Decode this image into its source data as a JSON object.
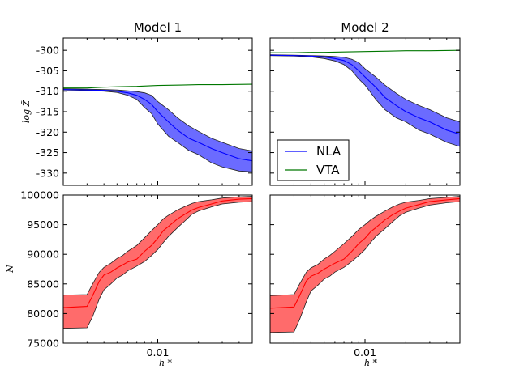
{
  "chart_data": [
    {
      "type": "line",
      "panel": "top-left",
      "title": "Model 1",
      "xscale": "log",
      "xlim": [
        0.002,
        0.05
      ],
      "ylim": [
        -333,
        -297
      ],
      "yticks": [
        -300,
        -305,
        -310,
        -315,
        -320,
        -325,
        -330
      ],
      "ytick_labels": [
        "-300",
        "-305",
        "-310",
        "-315",
        "-320",
        "-325",
        "-330"
      ],
      "xticks": [
        0.01
      ],
      "xtick_labels": [],
      "ylabel": "log Z̃",
      "xlabel": "",
      "series": [
        {
          "name": "NLA",
          "color": "#0000ff",
          "x": [
            0.002,
            0.003,
            0.004,
            0.005,
            0.006,
            0.007,
            0.008,
            0.009,
            0.01,
            0.012,
            0.014,
            0.017,
            0.02,
            0.025,
            0.03,
            0.04,
            0.05
          ],
          "y": [
            -309.6,
            -309.7,
            -309.8,
            -310.0,
            -310.4,
            -311.0,
            -312.0,
            -313.2,
            -315.0,
            -317.5,
            -319.5,
            -321.5,
            -322.5,
            -324.0,
            -325.0,
            -326.5,
            -327.0
          ],
          "lower": [
            -309.7,
            -309.8,
            -310.0,
            -310.3,
            -311.0,
            -312.0,
            -314.0,
            -315.5,
            -318.0,
            -321.0,
            -322.5,
            -324.5,
            -325.5,
            -327.5,
            -328.5,
            -329.5,
            -329.7
          ],
          "upper": [
            -309.4,
            -309.5,
            -309.6,
            -309.7,
            -309.9,
            -310.1,
            -310.4,
            -311.0,
            -312.5,
            -314.5,
            -316.5,
            -318.5,
            -319.8,
            -321.5,
            -322.5,
            -324.0,
            -324.6
          ]
        },
        {
          "name": "VTA",
          "color": "#007700",
          "x": [
            0.002,
            0.003,
            0.004,
            0.005,
            0.007,
            0.01,
            0.015,
            0.02,
            0.03,
            0.05
          ],
          "y": [
            -309.2,
            -309.2,
            -309.0,
            -308.9,
            -308.8,
            -308.6,
            -308.5,
            -308.4,
            -308.4,
            -308.3
          ]
        }
      ]
    },
    {
      "type": "line",
      "panel": "top-right",
      "title": "Model 2",
      "xscale": "log",
      "xlim": [
        0.002,
        0.05
      ],
      "ylim": [
        -333,
        -297
      ],
      "yticks": [
        -300,
        -305,
        -310,
        -315,
        -320,
        -325,
        -330
      ],
      "ytick_labels": [],
      "xticks": [
        0.01
      ],
      "xtick_labels": [],
      "series": [
        {
          "name": "NLA",
          "color": "#0000ff",
          "x": [
            0.002,
            0.003,
            0.004,
            0.005,
            0.006,
            0.007,
            0.008,
            0.009,
            0.01,
            0.012,
            0.014,
            0.017,
            0.02,
            0.025,
            0.03,
            0.04,
            0.05
          ],
          "y": [
            -301.2,
            -301.3,
            -301.4,
            -301.6,
            -302.0,
            -302.5,
            -303.5,
            -305.0,
            -306.5,
            -309.0,
            -311.5,
            -313.5,
            -315.0,
            -316.5,
            -317.5,
            -319.5,
            -320.5
          ],
          "lower": [
            -301.3,
            -301.4,
            -301.6,
            -302.0,
            -302.6,
            -303.5,
            -305.0,
            -307.0,
            -308.5,
            -312.0,
            -314.5,
            -316.5,
            -317.5,
            -319.5,
            -320.5,
            -322.5,
            -323.5
          ],
          "upper": [
            -301.1,
            -301.2,
            -301.3,
            -301.4,
            -301.5,
            -301.7,
            -302.2,
            -303.0,
            -304.5,
            -306.5,
            -308.5,
            -310.5,
            -312.0,
            -313.5,
            -314.5,
            -316.5,
            -317.5
          ]
        },
        {
          "name": "VTA",
          "color": "#007700",
          "x": [
            0.002,
            0.003,
            0.004,
            0.005,
            0.007,
            0.01,
            0.015,
            0.02,
            0.03,
            0.05
          ],
          "y": [
            -300.6,
            -300.6,
            -300.5,
            -300.5,
            -300.4,
            -300.3,
            -300.2,
            -300.1,
            -300.1,
            -300.0
          ]
        }
      ],
      "legend": {
        "placement": "lower-left",
        "entries": [
          {
            "label": "NLA",
            "color": "#0000ff"
          },
          {
            "label": "VTA",
            "color": "#007700"
          }
        ]
      }
    },
    {
      "type": "line",
      "panel": "bottom-left",
      "title": "",
      "xscale": "log",
      "xlim": [
        0.002,
        0.05
      ],
      "ylim": [
        75000,
        100000
      ],
      "yticks": [
        75000,
        80000,
        85000,
        90000,
        95000,
        100000
      ],
      "ytick_labels": [
        "75000",
        "80000",
        "85000",
        "90000",
        "95000",
        "100000"
      ],
      "xticks": [
        0.01
      ],
      "xtick_labels": [
        "0.01"
      ],
      "ylabel": "N",
      "xlabel": "h *",
      "series": [
        {
          "name": "",
          "color": "#ff0000",
          "x": [
            0.002,
            0.003,
            0.0033,
            0.0037,
            0.004,
            0.0045,
            0.005,
            0.0055,
            0.006,
            0.007,
            0.008,
            0.009,
            0.01,
            0.011,
            0.012,
            0.014,
            0.016,
            0.018,
            0.02,
            0.025,
            0.03,
            0.04,
            0.05
          ],
          "y": [
            81000,
            81200,
            83000,
            85500,
            86500,
            87000,
            87700,
            88200,
            88700,
            89200,
            90500,
            91500,
            92700,
            94000,
            94700,
            96000,
            96800,
            97500,
            97900,
            98500,
            99000,
            99300,
            99400
          ],
          "lower": [
            77500,
            77600,
            79500,
            82500,
            84000,
            85000,
            86000,
            86500,
            87200,
            88000,
            88800,
            89800,
            90800,
            92000,
            93000,
            94500,
            95700,
            96800,
            97300,
            98000,
            98500,
            98800,
            98900
          ],
          "upper": [
            83100,
            83200,
            85000,
            87000,
            87800,
            88500,
            89300,
            89800,
            90500,
            91500,
            92800,
            94000,
            95000,
            96000,
            96600,
            97500,
            98100,
            98600,
            98900,
            99200,
            99500,
            99700,
            99800
          ]
        }
      ]
    },
    {
      "type": "line",
      "panel": "bottom-right",
      "title": "",
      "xscale": "log",
      "xlim": [
        0.002,
        0.05
      ],
      "ylim": [
        75000,
        100000
      ],
      "yticks": [
        75000,
        80000,
        85000,
        90000,
        95000,
        100000
      ],
      "ytick_labels": [],
      "xticks": [
        0.01
      ],
      "xtick_labels": [
        "0.01"
      ],
      "xlabel": "h *",
      "series": [
        {
          "name": "",
          "color": "#ff0000",
          "x": [
            0.002,
            0.003,
            0.0033,
            0.0037,
            0.004,
            0.0045,
            0.005,
            0.0055,
            0.006,
            0.007,
            0.008,
            0.009,
            0.01,
            0.011,
            0.012,
            0.014,
            0.016,
            0.018,
            0.02,
            0.025,
            0.03,
            0.04,
            0.05
          ],
          "y": [
            80900,
            81100,
            83000,
            85500,
            86300,
            86800,
            87500,
            88000,
            88500,
            89200,
            90500,
            91800,
            92700,
            93800,
            94500,
            95800,
            96700,
            97300,
            97800,
            98400,
            98900,
            99200,
            99400
          ],
          "lower": [
            76800,
            76900,
            79000,
            82000,
            83800,
            84800,
            85800,
            86300,
            87000,
            87800,
            88800,
            89800,
            90800,
            92000,
            93000,
            94300,
            95500,
            96500,
            97100,
            97800,
            98300,
            98700,
            98900
          ],
          "upper": [
            83000,
            83200,
            85000,
            87000,
            87700,
            88300,
            89200,
            89800,
            90500,
            91800,
            93000,
            94200,
            95000,
            95800,
            96400,
            97300,
            98000,
            98500,
            98800,
            99100,
            99400,
            99600,
            99800
          ]
        }
      ]
    }
  ]
}
